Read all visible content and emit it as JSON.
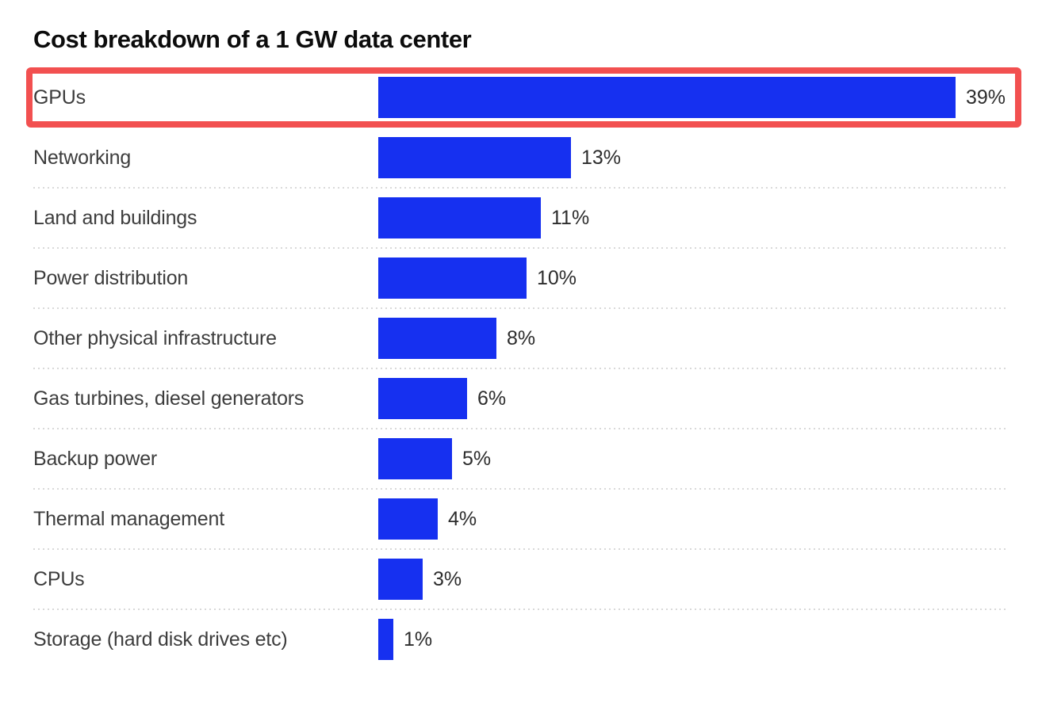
{
  "title": "Cost breakdown of a 1 GW data center",
  "chart_data": {
    "type": "bar",
    "orientation": "horizontal",
    "title": "Cost breakdown of a 1 GW data center",
    "categories": [
      "GPUs",
      "Networking",
      "Land and buildings",
      "Power distribution",
      "Other physical infrastructure",
      "Gas turbines, diesel generators",
      "Backup power",
      "Thermal management",
      "CPUs",
      "Storage (hard disk drives etc)"
    ],
    "values": [
      39,
      13,
      11,
      10,
      8,
      6,
      5,
      4,
      3,
      1
    ],
    "unit": "%",
    "value_labels": [
      "39%",
      "13%",
      "11%",
      "10%",
      "8%",
      "6%",
      "5%",
      "4%",
      "3%",
      "1%"
    ],
    "xlabel": "",
    "ylabel": "",
    "xlim": [
      0,
      39
    ],
    "grid": "dotted-row-separators",
    "legend_position": "none",
    "bar_color": "#1630f0",
    "separator_color": "#d9d9d9",
    "label_color": "#3d3d3d",
    "value_color": "#2d2d2d",
    "highlight": {
      "index": 0,
      "category": "GPUs",
      "border_color": "#f25050"
    }
  }
}
